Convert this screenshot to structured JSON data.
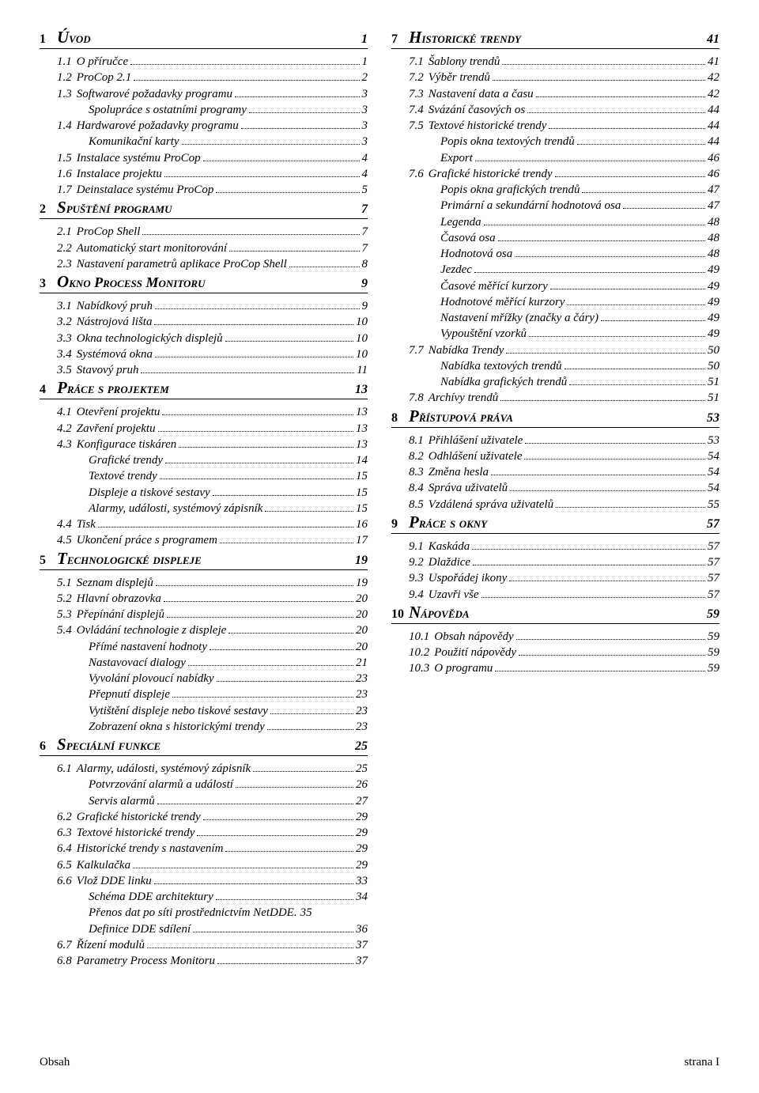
{
  "footer": {
    "left": "Obsah",
    "right": "strana I"
  },
  "left": [
    {
      "type": "chapter",
      "num": "1",
      "title": "Úvod",
      "page": "1"
    },
    {
      "type": "l1",
      "num": "1.1",
      "label": "O příručce",
      "pg": "1"
    },
    {
      "type": "l1",
      "num": "1.2",
      "label": "ProCop 2.1",
      "pg": "2"
    },
    {
      "type": "l1",
      "num": "1.3",
      "label": "Softwarové požadavky programu",
      "pg": "3"
    },
    {
      "type": "l2",
      "label": "Spolupráce s ostatními programy",
      "pg": "3"
    },
    {
      "type": "l1",
      "num": "1.4",
      "label": "Hardwarové požadavky programu",
      "pg": "3"
    },
    {
      "type": "l2",
      "label": "Komunikační karty",
      "pg": "3"
    },
    {
      "type": "l1",
      "num": "1.5",
      "label": "Instalace systému ProCop",
      "pg": "4"
    },
    {
      "type": "l1",
      "num": "1.6",
      "label": "Instalace projektu",
      "pg": "4"
    },
    {
      "type": "l1",
      "num": "1.7",
      "label": "Deinstalace systému ProCop",
      "pg": "5"
    },
    {
      "type": "chapter",
      "num": "2",
      "title": "Spuštění programu",
      "page": "7"
    },
    {
      "type": "l1",
      "num": "2.1",
      "label": "ProCop Shell",
      "pg": "7"
    },
    {
      "type": "l1",
      "num": "2.2",
      "label": "Automatický start monitorování",
      "pg": "7"
    },
    {
      "type": "l1",
      "num": "2.3",
      "label": "Nastavení parametrů aplikace ProCop Shell",
      "pg": "8"
    },
    {
      "type": "chapter",
      "num": "3",
      "title": "Okno Process Monitoru",
      "page": "9"
    },
    {
      "type": "l1",
      "num": "3.1",
      "label": "Nabídkový pruh",
      "pg": "9"
    },
    {
      "type": "l1",
      "num": "3.2",
      "label": "Nástrojová lišta",
      "pg": "10"
    },
    {
      "type": "l1",
      "num": "3.3",
      "label": "Okna technologických displejů",
      "pg": "10"
    },
    {
      "type": "l1",
      "num": "3.4",
      "label": "Systémová okna",
      "pg": "10"
    },
    {
      "type": "l1",
      "num": "3.5",
      "label": "Stavový pruh",
      "pg": "11"
    },
    {
      "type": "chapter",
      "num": "4",
      "title": "Práce s projektem",
      "page": "13"
    },
    {
      "type": "l1",
      "num": "4.1",
      "label": "Otevření projektu",
      "pg": "13"
    },
    {
      "type": "l1",
      "num": "4.2",
      "label": "Zavření projektu",
      "pg": "13"
    },
    {
      "type": "l1",
      "num": "4.3",
      "label": "Konfigurace tiskáren",
      "pg": "13"
    },
    {
      "type": "l2",
      "label": "Grafické trendy",
      "pg": "14"
    },
    {
      "type": "l2",
      "label": "Textové trendy",
      "pg": "15"
    },
    {
      "type": "l2",
      "label": "Displeje a tiskové sestavy",
      "pg": "15"
    },
    {
      "type": "l2",
      "label": "Alarmy, události, systémový zápisník",
      "pg": "15"
    },
    {
      "type": "l1",
      "num": "4.4",
      "label": "Tisk",
      "pg": "16"
    },
    {
      "type": "l1",
      "num": "4.5",
      "label": "Ukončení práce s programem",
      "pg": "17"
    },
    {
      "type": "chapter",
      "num": "5",
      "title": "Technologické displeje",
      "page": "19"
    },
    {
      "type": "l1",
      "num": "5.1",
      "label": "Seznam displejů",
      "pg": "19"
    },
    {
      "type": "l1",
      "num": "5.2",
      "label": "Hlavní obrazovka",
      "pg": "20"
    },
    {
      "type": "l1",
      "num": "5.3",
      "label": "Přepínání displejů",
      "pg": "20"
    },
    {
      "type": "l1",
      "num": "5.4",
      "label": "Ovládání technologie z displeje",
      "pg": "20"
    },
    {
      "type": "l2",
      "label": "Přímé nastavení hodnoty",
      "pg": "20"
    },
    {
      "type": "l2",
      "label": "Nastavovací dialogy",
      "pg": "21"
    },
    {
      "type": "l2",
      "label": "Vyvolání plovoucí nabídky",
      "pg": "23"
    },
    {
      "type": "l2",
      "label": "Přepnutí displeje",
      "pg": "23"
    },
    {
      "type": "l2",
      "label": "Vytištění displeje nebo tiskové sestavy",
      "pg": "23"
    },
    {
      "type": "l2",
      "label": "Zobrazení okna s historickými trendy",
      "pg": "23"
    },
    {
      "type": "chapter",
      "num": "6",
      "title": "Speciální funkce",
      "page": "25"
    },
    {
      "type": "l1",
      "num": "6.1",
      "label": "Alarmy, události, systémový zápisník",
      "pg": "25"
    },
    {
      "type": "l2",
      "label": "Potvrzování alarmů a událostí",
      "pg": "26"
    },
    {
      "type": "l2",
      "label": "Servis alarmů",
      "pg": "27"
    },
    {
      "type": "l1",
      "num": "6.2",
      "label": "Grafické historické trendy",
      "pg": "29"
    },
    {
      "type": "l1",
      "num": "6.3",
      "label": "Textové historické trendy",
      "pg": "29"
    },
    {
      "type": "l1",
      "num": "6.4",
      "label": "Historické trendy s nastavením",
      "pg": "29"
    },
    {
      "type": "l1",
      "num": "6.5",
      "label": "Kalkulačka",
      "pg": "29"
    },
    {
      "type": "l1",
      "num": "6.6",
      "label": "Vlož DDE linku",
      "pg": "33"
    },
    {
      "type": "l2",
      "label": "Schéma DDE architektury",
      "pg": "34"
    },
    {
      "type": "l2nodots",
      "label": "Přenos dat po síti prostřednictvím NetDDE.",
      "pg": "35"
    },
    {
      "type": "l2",
      "label": "Definice DDE sdílení",
      "pg": "36"
    },
    {
      "type": "l1",
      "num": "6.7",
      "label": "Řízení modulů",
      "pg": "37"
    },
    {
      "type": "l1",
      "num": "6.8",
      "label": "Parametry Process Monitoru",
      "pg": "37"
    }
  ],
  "right": [
    {
      "type": "chapter",
      "num": "7",
      "title": "Historické trendy",
      "page": "41"
    },
    {
      "type": "l1",
      "num": "7.1",
      "label": "Šablony trendů",
      "pg": "41"
    },
    {
      "type": "l1",
      "num": "7.2",
      "label": "Výběr trendů",
      "pg": "42"
    },
    {
      "type": "l1",
      "num": "7.3",
      "label": "Nastavení data a času",
      "pg": "42"
    },
    {
      "type": "l1",
      "num": "7.4",
      "label": "Svázání časových os",
      "pg": "44"
    },
    {
      "type": "l1",
      "num": "7.5",
      "label": "Textové historické trendy",
      "pg": "44"
    },
    {
      "type": "l2",
      "label": "Popis okna textových trendů",
      "pg": "44"
    },
    {
      "type": "l2",
      "label": "Export",
      "pg": "46"
    },
    {
      "type": "l1",
      "num": "7.6",
      "label": "Grafické historické trendy",
      "pg": "46"
    },
    {
      "type": "l2",
      "label": "Popis okna grafických trendů",
      "pg": "47"
    },
    {
      "type": "l2",
      "label": "Primární a sekundární hodnotová osa",
      "pg": "47"
    },
    {
      "type": "l2",
      "label": "Legenda",
      "pg": "48"
    },
    {
      "type": "l2",
      "label": "Časová osa",
      "pg": "48"
    },
    {
      "type": "l2",
      "label": "Hodnotová osa",
      "pg": "48"
    },
    {
      "type": "l2",
      "label": "Jezdec",
      "pg": "49"
    },
    {
      "type": "l2",
      "label": "Časové měřící kurzory",
      "pg": "49"
    },
    {
      "type": "l2",
      "label": "Hodnotové měřící kurzory",
      "pg": "49"
    },
    {
      "type": "l2",
      "label": "Nastavení mřížky (značky a čáry)",
      "pg": "49"
    },
    {
      "type": "l2",
      "label": "Vypouštění vzorků",
      "pg": "49"
    },
    {
      "type": "l1",
      "num": "7.7",
      "label": "Nabídka Trendy",
      "pg": "50"
    },
    {
      "type": "l2",
      "label": "Nabídka textových trendů",
      "pg": "50"
    },
    {
      "type": "l2",
      "label": "Nabídka grafických trendů",
      "pg": "51"
    },
    {
      "type": "l1",
      "num": "7.8",
      "label": "Archívy trendů",
      "pg": "51"
    },
    {
      "type": "chapter",
      "num": "8",
      "title": "Přístupová práva",
      "page": "53"
    },
    {
      "type": "l1",
      "num": "8.1",
      "label": "Přihlášení uživatele",
      "pg": "53"
    },
    {
      "type": "l1",
      "num": "8.2",
      "label": "Odhlášení uživatele",
      "pg": "54"
    },
    {
      "type": "l1",
      "num": "8.3",
      "label": "Změna hesla",
      "pg": "54"
    },
    {
      "type": "l1",
      "num": "8.4",
      "label": "Správa uživatelů",
      "pg": "54"
    },
    {
      "type": "l1",
      "num": "8.5",
      "label": "Vzdálená správa uživatelů",
      "pg": "55"
    },
    {
      "type": "chapter",
      "num": "9",
      "title": "Práce s okny",
      "page": "57"
    },
    {
      "type": "l1",
      "num": "9.1",
      "label": "Kaskáda",
      "pg": "57"
    },
    {
      "type": "l1",
      "num": "9.2",
      "label": "Dlaždice",
      "pg": "57"
    },
    {
      "type": "l1",
      "num": "9.3",
      "label": "Uspořádej ikony",
      "pg": "57"
    },
    {
      "type": "l1",
      "num": "9.4",
      "label": "Uzavři vše",
      "pg": "57"
    },
    {
      "type": "chapter",
      "num": "10",
      "title": "Nápověda",
      "page": "59"
    },
    {
      "type": "l1",
      "num": "10.1",
      "label": "Obsah nápovědy",
      "pg": "59"
    },
    {
      "type": "l1",
      "num": "10.2",
      "label": "Použití nápovědy",
      "pg": "59"
    },
    {
      "type": "l1",
      "num": "10.3",
      "label": "O programu",
      "pg": "59"
    }
  ]
}
